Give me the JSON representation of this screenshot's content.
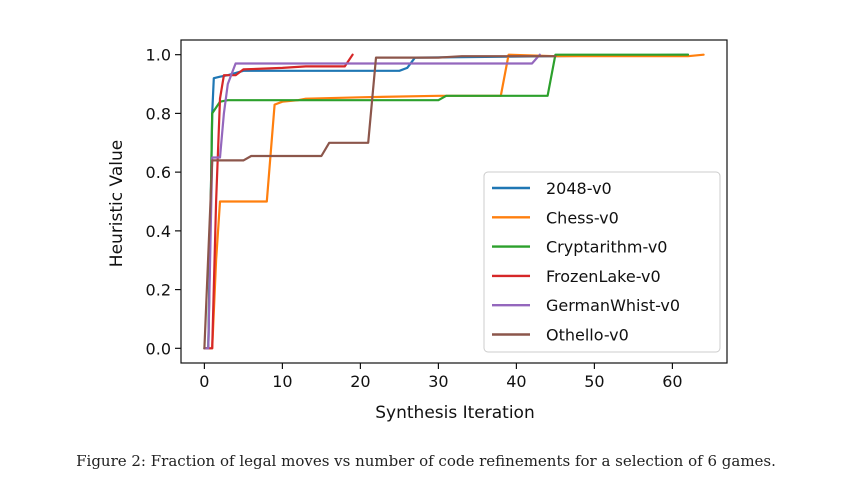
{
  "chart_data": {
    "type": "line",
    "title": "",
    "xlabel": "Synthesis Iteration",
    "ylabel": "Heuristic Value",
    "xlim": [
      -3,
      67
    ],
    "ylim": [
      -0.05,
      1.05
    ],
    "xticks": [
      0,
      10,
      20,
      30,
      40,
      50,
      60
    ],
    "xtick_labels": [
      "0",
      "10",
      "20",
      "30",
      "40",
      "50",
      "60"
    ],
    "yticks": [
      0.0,
      0.2,
      0.4,
      0.6,
      0.8,
      1.0
    ],
    "ytick_labels": [
      "0.0",
      "0.2",
      "0.4",
      "0.6",
      "0.8",
      "1.0"
    ],
    "grid": false,
    "legend_position": "lower-right",
    "series": [
      {
        "name": "2048-v0",
        "color": "#1f77b4",
        "points": [
          [
            0,
            0.0
          ],
          [
            0.5,
            0.0
          ],
          [
            1,
            0.8
          ],
          [
            1.2,
            0.92
          ],
          [
            2,
            0.925
          ],
          [
            3,
            0.93
          ],
          [
            5,
            0.945
          ],
          [
            20,
            0.945
          ],
          [
            25,
            0.945
          ],
          [
            26,
            0.955
          ],
          [
            27,
            0.99
          ],
          [
            45,
            0.995
          ],
          [
            62,
            1.0
          ]
        ]
      },
      {
        "name": "Chess-v0",
        "color": "#ff7f0e",
        "points": [
          [
            0,
            0.0
          ],
          [
            1,
            0.0
          ],
          [
            1.5,
            0.3
          ],
          [
            2,
            0.5
          ],
          [
            8,
            0.5
          ],
          [
            9,
            0.83
          ],
          [
            10,
            0.84
          ],
          [
            12,
            0.845
          ],
          [
            13,
            0.85
          ],
          [
            20,
            0.855
          ],
          [
            30,
            0.86
          ],
          [
            38,
            0.86
          ],
          [
            39,
            1.0
          ],
          [
            45,
            0.995
          ],
          [
            62,
            0.995
          ],
          [
            64,
            1.0
          ]
        ]
      },
      {
        "name": "Cryptarithm-v0",
        "color": "#2ca02c",
        "points": [
          [
            0,
            0.0
          ],
          [
            0.5,
            0.0
          ],
          [
            1,
            0.8
          ],
          [
            2,
            0.84
          ],
          [
            3,
            0.845
          ],
          [
            30,
            0.845
          ],
          [
            31,
            0.86
          ],
          [
            44,
            0.86
          ],
          [
            45,
            1.0
          ],
          [
            62,
            1.0
          ]
        ]
      },
      {
        "name": "FrozenLake-v0",
        "color": "#d62728",
        "points": [
          [
            0,
            0.0
          ],
          [
            1,
            0.0
          ],
          [
            1.5,
            0.5
          ],
          [
            2,
            0.85
          ],
          [
            2.5,
            0.93
          ],
          [
            4,
            0.93
          ],
          [
            5,
            0.95
          ],
          [
            10,
            0.955
          ],
          [
            13,
            0.96
          ],
          [
            18,
            0.96
          ],
          [
            19,
            1.0
          ]
        ]
      },
      {
        "name": "GermanWhist-v0",
        "color": "#9467bd",
        "points": [
          [
            0,
            0.0
          ],
          [
            0.5,
            0.0
          ],
          [
            1,
            0.65
          ],
          [
            2,
            0.65
          ],
          [
            2.5,
            0.8
          ],
          [
            3,
            0.9
          ],
          [
            4,
            0.97
          ],
          [
            42,
            0.97
          ],
          [
            43,
            1.0
          ]
        ]
      },
      {
        "name": "Othello-v0",
        "color": "#8c564b",
        "points": [
          [
            0,
            0.0
          ],
          [
            1,
            0.64
          ],
          [
            5,
            0.64
          ],
          [
            6,
            0.655
          ],
          [
            15,
            0.655
          ],
          [
            16,
            0.7
          ],
          [
            21,
            0.7
          ],
          [
            22,
            0.99
          ],
          [
            30,
            0.99
          ],
          [
            33,
            0.995
          ],
          [
            45,
            0.995
          ]
        ]
      }
    ]
  },
  "caption": "Figure 2: Fraction of legal moves vs number of code refinements for a selection of 6 games."
}
